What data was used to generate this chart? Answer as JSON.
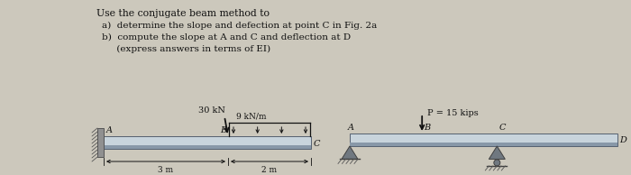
{
  "bg_color": "#ccc8bc",
  "text_color": "#111111",
  "title_text": "Use the conjugate beam method to",
  "item_a": "a)  determine the slope and defection at point C in Fig. 2a",
  "item_b": "b)  compute the slope at A and C and deflection at D",
  "item_c": "     (express answers in terms of EI)",
  "fig2a_label_A": "A",
  "fig2a_label_B": "B",
  "fig2a_label_C": "C",
  "fig2a_force_label": "30 kN",
  "fig2a_dist_label": "9 kN/m",
  "fig2a_dim1": "3 m",
  "fig2a_dim2": "2 m",
  "fig2b_label_A": "A",
  "fig2b_label_B": "B",
  "fig2b_label_C": "C",
  "fig2b_label_D": "D",
  "fig2b_force_label": "P = 15 kips",
  "beam_color_top": "#c8d4dc",
  "beam_color_bot": "#8898a8",
  "beam_edge_color": "#556070",
  "support_color": "#707880",
  "arrow_color": "#111111",
  "dist_load_color": "#111111",
  "wall_color": "#909090",
  "wall_hatch_color": "#555555"
}
